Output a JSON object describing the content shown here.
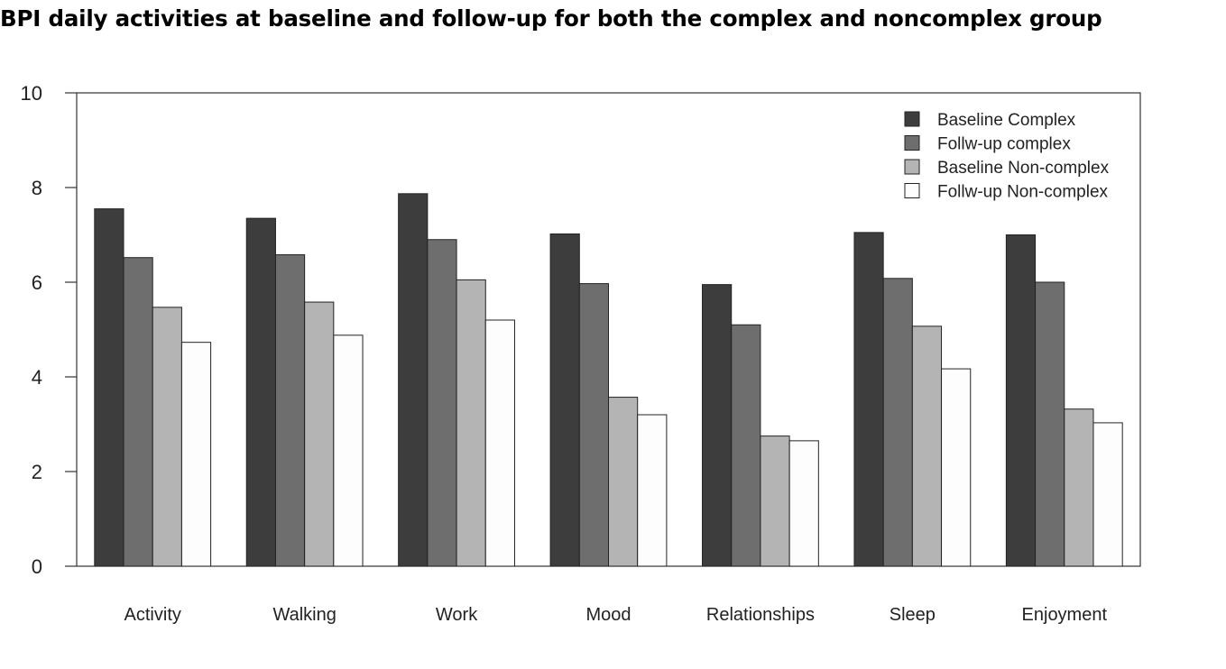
{
  "title": "BPI daily activities at baseline and follow-up for both the complex and noncomplex group",
  "chart_data": {
    "type": "bar",
    "title": "BPI daily activities at baseline and follow-up for both the complex and noncomplex group",
    "xlabel": "",
    "ylabel": "",
    "ylim": [
      0,
      10
    ],
    "yticks": [
      0,
      2,
      4,
      6,
      8,
      10
    ],
    "grid": false,
    "legend_position": "top-right",
    "categories": [
      "Activity",
      "Walking",
      "Work",
      "Mood",
      "Relationships",
      "Sleep",
      "Enjoyment"
    ],
    "series": [
      {
        "name": "Baseline Complex",
        "color": "#3d3d3d",
        "values": [
          7.55,
          7.35,
          7.87,
          7.02,
          5.95,
          7.05,
          7.0
        ]
      },
      {
        "name": "Follw-up complex",
        "color": "#6e6e6e",
        "values": [
          6.52,
          6.58,
          6.9,
          5.97,
          5.1,
          6.08,
          6.0
        ]
      },
      {
        "name": "Baseline Non-complex",
        "color": "#b4b4b4",
        "values": [
          5.47,
          5.58,
          6.05,
          3.57,
          2.75,
          5.07,
          3.32
        ]
      },
      {
        "name": "Follw-up Non-complex",
        "color": "#fdfdfd",
        "values": [
          4.73,
          4.88,
          5.2,
          3.2,
          2.65,
          4.17,
          3.03
        ]
      }
    ]
  }
}
